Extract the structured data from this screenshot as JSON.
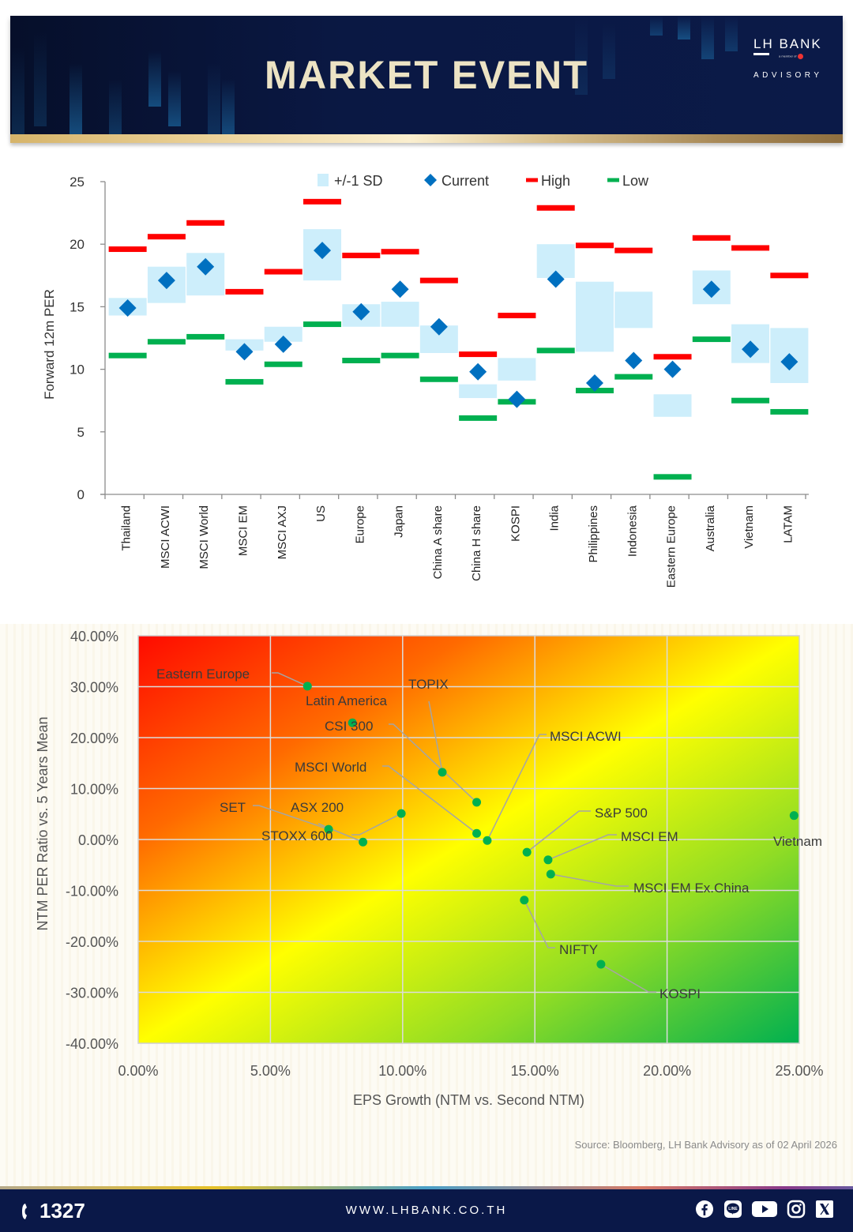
{
  "header": {
    "title": "MARKET  EVENT",
    "logo_name": "LH BANK",
    "logo_member": "a member of",
    "logo_sub": "ADVISORY"
  },
  "chart_data": [
    {
      "type": "range-marker",
      "title": "",
      "xlabel": "",
      "ylabel": "Forward 12m PER",
      "ylim": [
        0,
        25
      ],
      "yticks": [
        "0",
        "5",
        "10",
        "15",
        "20",
        "25"
      ],
      "legend": {
        "position": "top",
        "entries": [
          {
            "name": "+/-1 SD",
            "color": "#cdeefb",
            "shape": "square"
          },
          {
            "name": "Current",
            "color": "#0070c0",
            "shape": "diamond"
          },
          {
            "name": "High",
            "color": "#ff0000",
            "shape": "dash"
          },
          {
            "name": "Low",
            "color": "#00b050",
            "shape": "dash"
          }
        ]
      },
      "categories": [
        "Thailand",
        "MSCI ACWI",
        "MSCI World",
        "MSCI EM",
        "MSCI AXJ",
        "US",
        "Europe",
        "Japan",
        "China A share",
        "China H share",
        "KOSPI",
        "India",
        "Philippines",
        "Indonesia",
        "Eastern Europe",
        "Australia",
        "Vietnam",
        "LATAM"
      ],
      "series": [
        {
          "name": "High",
          "values": [
            19.6,
            20.6,
            21.7,
            16.2,
            17.8,
            23.4,
            19.1,
            19.4,
            17.1,
            11.2,
            14.3,
            22.9,
            19.9,
            19.5,
            11.0,
            20.5,
            19.7,
            17.5
          ]
        },
        {
          "name": "Low",
          "values": [
            11.1,
            12.2,
            12.6,
            9.0,
            10.4,
            13.6,
            10.7,
            11.1,
            9.2,
            6.1,
            7.4,
            11.5,
            8.3,
            9.4,
            1.4,
            12.4,
            7.5,
            6.6
          ]
        },
        {
          "name": "+1 SD",
          "values": [
            15.7,
            18.2,
            19.3,
            12.4,
            13.4,
            21.2,
            15.2,
            15.4,
            13.5,
            8.8,
            10.9,
            20.0,
            17.0,
            16.2,
            8.0,
            17.9,
            13.6,
            13.3
          ]
        },
        {
          "name": "-1 SD",
          "values": [
            14.3,
            15.3,
            15.9,
            11.5,
            12.2,
            17.1,
            13.4,
            13.4,
            11.3,
            7.7,
            9.1,
            17.3,
            11.4,
            13.3,
            6.2,
            15.2,
            10.5,
            8.9
          ]
        },
        {
          "name": "Current",
          "values": [
            14.9,
            17.1,
            18.2,
            11.4,
            12.0,
            19.5,
            14.6,
            16.4,
            13.4,
            9.8,
            7.6,
            17.2,
            8.9,
            10.7,
            10.0,
            16.4,
            11.6,
            10.6
          ]
        }
      ]
    },
    {
      "type": "scatter",
      "title": "",
      "xlabel": "EPS Growth (NTM vs. Second NTM)",
      "ylabel": "NTM PER Ratio vs. 5 Years Mean",
      "xlim": [
        0,
        25
      ],
      "ylim": [
        -40,
        40
      ],
      "xticks": [
        "0.00%",
        "5.00%",
        "10.00%",
        "15.00%",
        "20.00%",
        "25.00%"
      ],
      "yticks": [
        "40.00%",
        "30.00%",
        "20.00%",
        "10.00%",
        "0.00%",
        "-10.00%",
        "-20.00%",
        "-30.00%",
        "-40.00%"
      ],
      "grid": true,
      "background": "diagonal gradient red (top-left) → yellow → green (bottom-right)",
      "marker_color": "#00b050",
      "points": [
        {
          "label": "Eastern Europe",
          "x": 6.4,
          "y": 30.1
        },
        {
          "label": "Latin America",
          "x": 8.1,
          "y": 22.9
        },
        {
          "label": "TOPIX",
          "x": 11.5,
          "y": 13.2
        },
        {
          "label": "CSI 300",
          "x": 12.8,
          "y": 7.3
        },
        {
          "label": "MSCI World",
          "x": 12.8,
          "y": 1.2
        },
        {
          "label": "MSCI ACWI",
          "x": 13.2,
          "y": -0.2
        },
        {
          "label": "SET",
          "x": 7.2,
          "y": 2.0
        },
        {
          "label": "ASX 200",
          "x": 8.5,
          "y": -0.5
        },
        {
          "label": "STOXX 600",
          "x": 9.95,
          "y": 5.1
        },
        {
          "label": "S&P 500",
          "x": 14.7,
          "y": -2.5
        },
        {
          "label": "MSCI EM",
          "x": 15.5,
          "y": -4.0
        },
        {
          "label": "MSCI EM Ex.China",
          "x": 15.6,
          "y": -6.8
        },
        {
          "label": "NIFTY",
          "x": 14.6,
          "y": -11.9
        },
        {
          "label": "KOSPI",
          "x": 17.5,
          "y": -24.5
        },
        {
          "label": "Vietnam",
          "x": 24.8,
          "y": 4.7
        }
      ]
    }
  ],
  "source": "Source: Bloomberg,  LH Bank Advisory  as of 02 April 2026",
  "footer": {
    "phone": "1327",
    "website": "WWW.LHBANK.CO.TH",
    "socials": [
      "facebook-icon",
      "line-icon",
      "youtube-icon",
      "instagram-icon",
      "x-icon"
    ]
  },
  "colors": {
    "navy": "#0a1848",
    "gold": "#ece3c4",
    "high": "#ff0000",
    "low": "#00b050",
    "current": "#0070c0",
    "sd": "#cdeefb"
  }
}
